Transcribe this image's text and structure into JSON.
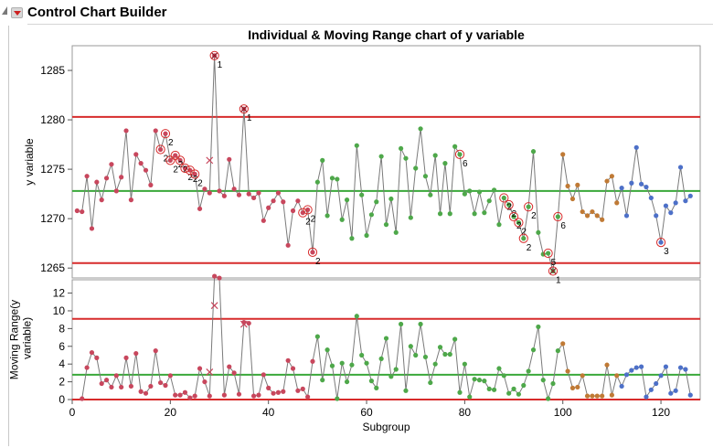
{
  "app": {
    "title": "Control Chart Builder"
  },
  "chart_data": {
    "type": "control-chart",
    "title": "Individual & Moving Range chart of y variable",
    "xlabel": "Subgroup",
    "xlim": [
      0,
      128
    ],
    "x_ticks": [
      0,
      20,
      40,
      60,
      80,
      100,
      120
    ],
    "colors": {
      "phase1": "#c8475d",
      "phase2": "#4ea84a",
      "phase3": "#c07a35",
      "phase4": "#4d70c8",
      "center": "#3aa83a",
      "limit": "#d72b2b",
      "line": "#7a7a7a"
    },
    "phases": [
      {
        "name": "phase1",
        "start": 1,
        "end": 49
      },
      {
        "name": "phase2",
        "start": 50,
        "end": 99
      },
      {
        "name": "phase3",
        "start": 100,
        "end": 111
      },
      {
        "name": "phase4",
        "start": 112,
        "end": 126
      }
    ],
    "individual": {
      "ylabel": "y variable",
      "ylim": [
        1264,
        1287.5
      ],
      "y_ticks": [
        1265,
        1270,
        1275,
        1280,
        1285
      ],
      "UCL": 1280.3,
      "CL": 1272.8,
      "LCL": 1265.5,
      "values": [
        1270.8,
        1270.7,
        1274.3,
        1269.0,
        1273.7,
        1271.9,
        1274.1,
        1275.5,
        1272.8,
        1274.2,
        1278.9,
        1271.9,
        1276.5,
        1275.6,
        1274.9,
        1273.4,
        1278.9,
        1277.0,
        1278.6,
        1275.9,
        1276.4,
        1275.9,
        1275.1,
        1274.9,
        1274.5,
        1271.0,
        1273.0,
        1272.6,
        1286.5,
        1272.8,
        1272.3,
        1276.0,
        1273.0,
        1272.4,
        1281.1,
        1272.5,
        1272.1,
        1272.6,
        1269.8,
        1271.1,
        1271.8,
        1272.6,
        1271.7,
        1267.3,
        1270.8,
        1271.8,
        1270.6,
        1270.9,
        1266.6,
        1273.7,
        1275.9,
        1270.3,
        1274.1,
        1274.0,
        1269.9,
        1271.9,
        1268.0,
        1277.4,
        1272.4,
        1268.3,
        1270.4,
        1271.7,
        1276.3,
        1269.4,
        1272.0,
        1268.6,
        1277.1,
        1276.1,
        1270.1,
        1275.1,
        1279.1,
        1274.3,
        1272.4,
        1276.4,
        1270.5,
        1275.6,
        1270.5,
        1277.3,
        1276.5,
        1272.5,
        1272.8,
        1270.5,
        1272.7,
        1270.6,
        1271.8,
        1272.9,
        1269.4,
        1272.1,
        1271.4,
        1270.2,
        1269.6,
        1268.0,
        1271.2,
        1276.8,
        1268.6,
        1266.4,
        1266.5,
        1264.7,
        1270.2,
        1276.5,
        1273.3,
        1272.0,
        1273.4,
        1270.7,
        1270.3,
        1270.7,
        1270.3,
        1269.9,
        1273.8,
        1274.3,
        1271.6,
        1273.1,
        1270.3,
        1273.6,
        1277.2,
        1273.5,
        1273.2,
        1272.1,
        1270.3,
        1267.6,
        1271.3,
        1270.6,
        1271.6,
        1275.2,
        1271.8,
        1272.3
      ],
      "excluded_markers": [
        {
          "subgroup": 28,
          "value": 1275.9
        }
      ],
      "flags": [
        {
          "subgroup": 18,
          "label": "2"
        },
        {
          "subgroup": 19,
          "label": "2"
        },
        {
          "subgroup": 20,
          "label": "2"
        },
        {
          "subgroup": 21,
          "label": "2"
        },
        {
          "subgroup": 22,
          "label": "2"
        },
        {
          "subgroup": 23,
          "label": "2"
        },
        {
          "subgroup": 24,
          "label": "2"
        },
        {
          "subgroup": 25,
          "label": "2"
        },
        {
          "subgroup": 29,
          "label": "1"
        },
        {
          "subgroup": 35,
          "label": "1"
        },
        {
          "subgroup": 47,
          "label": "2"
        },
        {
          "subgroup": 48,
          "label": "2"
        },
        {
          "subgroup": 49,
          "label": "2"
        },
        {
          "subgroup": 79,
          "label": "6"
        },
        {
          "subgroup": 88,
          "label": "2"
        },
        {
          "subgroup": 89,
          "label": "2"
        },
        {
          "subgroup": 90,
          "label": "2"
        },
        {
          "subgroup": 91,
          "label": "2"
        },
        {
          "subgroup": 92,
          "label": "2"
        },
        {
          "subgroup": 93,
          "label": "2"
        },
        {
          "subgroup": 97,
          "label": "5"
        },
        {
          "subgroup": 98,
          "label": "1"
        },
        {
          "subgroup": 99,
          "label": "6"
        },
        {
          "subgroup": 120,
          "label": "3"
        }
      ]
    },
    "moving_range": {
      "ylabel": "Moving Range(y variable)",
      "ylim": [
        0,
        13.5
      ],
      "y_ticks": [
        0,
        2,
        4,
        6,
        8,
        10,
        12
      ],
      "UCL": 9.1,
      "CL": 2.8,
      "LCL": 0,
      "values": [
        null,
        0.1,
        3.6,
        5.3,
        4.7,
        1.8,
        2.2,
        1.4,
        2.7,
        1.4,
        4.7,
        1.5,
        5.2,
        0.9,
        0.7,
        1.5,
        5.5,
        1.9,
        1.6,
        2.7,
        0.5,
        0.5,
        0.8,
        0.2,
        0.4,
        3.5,
        2.0,
        0.4,
        13.9,
        13.7,
        0.5,
        3.7,
        3.0,
        0.6,
        8.7,
        8.6,
        0.4,
        0.5,
        2.8,
        1.3,
        0.7,
        0.8,
        0.9,
        4.4,
        3.5,
        1.0,
        1.2,
        0.3,
        4.3,
        7.1,
        2.2,
        5.6,
        3.8,
        0.1,
        4.1,
        2.0,
        3.9,
        9.4,
        5.0,
        4.1,
        2.1,
        1.3,
        4.6,
        6.9,
        2.6,
        3.4,
        8.5,
        1.0,
        6.0,
        5.0,
        8.5,
        4.8,
        1.9,
        4.0,
        5.9,
        5.1,
        5.1,
        6.8,
        0.8,
        4.0,
        0.3,
        2.3,
        2.2,
        2.1,
        1.2,
        1.1,
        3.5,
        2.7,
        0.7,
        1.2,
        0.6,
        1.6,
        3.2,
        5.6,
        8.2,
        2.2,
        0.1,
        1.8,
        5.5,
        6.3,
        3.2,
        1.3,
        1.4,
        2.7,
        0.4,
        0.4,
        0.4,
        0.4,
        3.9,
        0.5,
        2.7,
        1.5,
        2.8,
        3.3,
        3.6,
        3.7,
        0.3,
        1.1,
        1.8,
        2.7,
        3.7,
        0.7,
        1.0,
        3.6,
        3.4,
        0.5
      ],
      "excluded_markers": [
        {
          "subgroup": 28,
          "value": 3.1
        },
        {
          "subgroup": 29,
          "value": 10.6
        },
        {
          "subgroup": 35,
          "value": 8.5
        }
      ]
    }
  }
}
